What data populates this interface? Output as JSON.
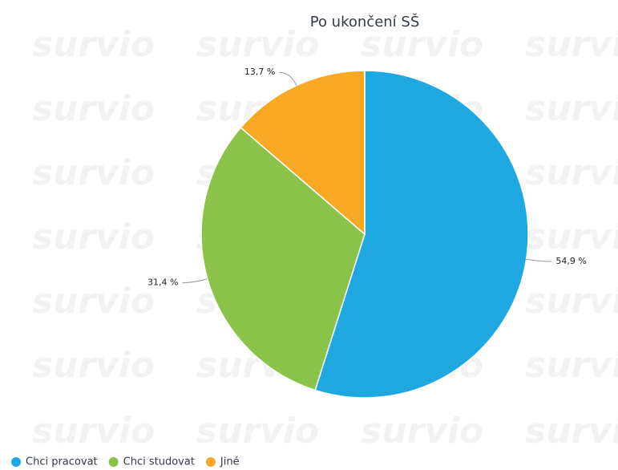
{
  "chart_data": {
    "type": "pie",
    "title": "Po ukončení SŠ",
    "watermark": "survio",
    "categories": [
      "Chci pracovat",
      "Chci studovat",
      "Jiné"
    ],
    "values": [
      54.9,
      31.4,
      13.7
    ],
    "value_labels": [
      "54,9 %",
      "31,4 %",
      "13,7 %"
    ],
    "colors": [
      "#1fa8e0",
      "#8bc34a",
      "#f9a825"
    ],
    "legend": "bottom-left"
  }
}
